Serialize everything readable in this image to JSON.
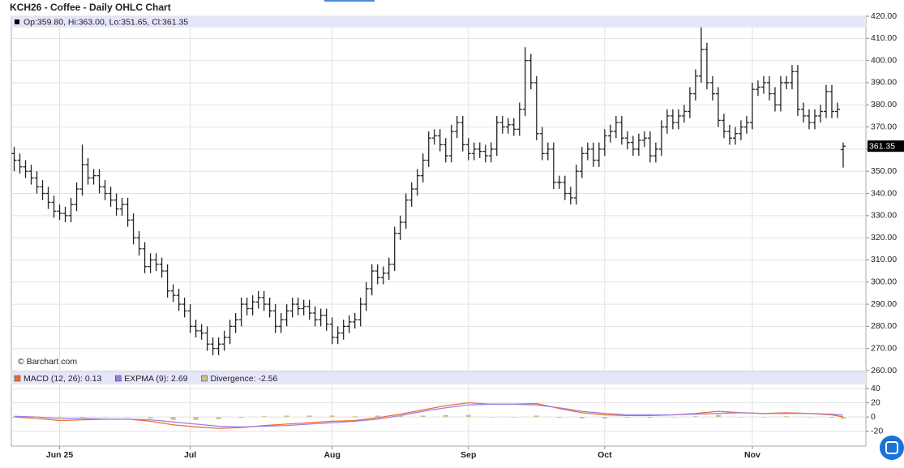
{
  "chart_data": [
    {
      "type": "ohlc",
      "title": "KCH26 - Coffee - Daily OHLC Chart",
      "legend_text": "Op:359.80, Hi:363.00, Lo:351.65, Cl:361.35",
      "last_label": "361.35",
      "credit": "© Barchart.com",
      "color": "#222222",
      "grid": true,
      "xlim": [
        -0.5,
        150
      ],
      "ylim": [
        260,
        420
      ],
      "yticks": [
        {
          "value": 260,
          "label": "260.00"
        },
        {
          "value": 270,
          "label": "270.00"
        },
        {
          "value": 280,
          "label": "280.00"
        },
        {
          "value": 290,
          "label": "290.00"
        },
        {
          "value": 300,
          "label": "300.00"
        },
        {
          "value": 310,
          "label": "310.00"
        },
        {
          "value": 320,
          "label": "320.00"
        },
        {
          "value": 330,
          "label": "330.00"
        },
        {
          "value": 340,
          "label": "340.00"
        },
        {
          "value": 350,
          "label": "350.00"
        },
        {
          "value": 360,
          "label": "360.00"
        },
        {
          "value": 370,
          "label": "370.00"
        },
        {
          "value": 380,
          "label": "380.00"
        },
        {
          "value": 390,
          "label": "390.00"
        },
        {
          "value": 400,
          "label": "400.00"
        },
        {
          "value": 410,
          "label": "410.00"
        },
        {
          "value": 420,
          "label": "420.00"
        }
      ],
      "open": [
        358,
        355,
        352,
        350,
        347,
        343,
        340,
        336,
        332,
        331,
        330,
        335,
        342,
        353,
        347,
        348,
        343,
        340,
        337,
        333,
        335,
        328,
        320,
        315,
        307,
        310,
        308,
        305,
        296,
        294,
        290,
        287,
        280,
        278,
        277,
        272,
        270,
        272,
        275,
        280,
        283,
        290,
        288,
        291,
        293,
        290,
        287,
        280,
        283,
        287,
        290,
        288,
        289,
        286,
        283,
        285,
        281,
        275,
        277,
        280,
        282,
        283,
        290,
        297,
        305,
        302,
        304,
        308,
        322,
        327,
        337,
        342,
        348,
        355,
        365,
        366,
        362,
        357,
        368,
        372,
        362,
        358,
        360,
        359,
        357,
        360,
        372,
        370,
        371,
        369,
        378,
        400,
        390,
        367,
        358,
        360,
        345,
        345,
        340,
        338,
        350,
        358,
        360,
        355,
        360,
        366,
        368,
        372,
        365,
        363,
        360,
        364,
        365,
        357,
        360,
        370,
        375,
        372,
        375,
        377,
        385,
        393,
        405,
        390,
        385,
        373,
        368,
        365,
        367,
        370,
        372,
        387,
        388,
        390,
        385,
        380,
        390,
        390,
        395,
        378,
        375,
        372,
        375,
        377,
        386,
        377,
        359.8
      ],
      "high": [
        361,
        358,
        355,
        353,
        350,
        346,
        343,
        339,
        335,
        334,
        338,
        345,
        362,
        356,
        351,
        351,
        346,
        343,
        340,
        338,
        338,
        331,
        323,
        318,
        313,
        313,
        311,
        308,
        299,
        297,
        293,
        290,
        283,
        281,
        280,
        275,
        275,
        278,
        283,
        286,
        293,
        293,
        294,
        296,
        296,
        293,
        290,
        286,
        290,
        293,
        293,
        292,
        292,
        289,
        288,
        288,
        284,
        280,
        283,
        285,
        286,
        293,
        300,
        308,
        308,
        307,
        311,
        325,
        330,
        340,
        345,
        351,
        358,
        368,
        369,
        369,
        365,
        371,
        375,
        375,
        365,
        363,
        363,
        362,
        363,
        375,
        375,
        374,
        374,
        381,
        406,
        403,
        393,
        370,
        363,
        363,
        348,
        348,
        343,
        353,
        361,
        363,
        363,
        363,
        369,
        371,
        375,
        375,
        368,
        366,
        367,
        368,
        368,
        363,
        373,
        378,
        378,
        378,
        380,
        388,
        396,
        415,
        408,
        393,
        388,
        376,
        371,
        370,
        373,
        375,
        390,
        391,
        393,
        393,
        388,
        393,
        393,
        398,
        398,
        381,
        378,
        378,
        380,
        389,
        389,
        381,
        363.0
      ],
      "low": [
        350,
        349,
        347,
        344,
        340,
        337,
        333,
        329,
        328,
        327,
        327,
        332,
        339,
        344,
        344,
        340,
        337,
        334,
        330,
        330,
        325,
        317,
        312,
        304,
        304,
        305,
        302,
        293,
        291,
        287,
        284,
        277,
        275,
        274,
        269,
        267,
        267,
        269,
        272,
        277,
        280,
        285,
        285,
        288,
        287,
        284,
        277,
        277,
        280,
        284,
        285,
        285,
        283,
        280,
        280,
        278,
        272,
        272,
        274,
        277,
        279,
        280,
        287,
        294,
        299,
        299,
        301,
        305,
        319,
        324,
        334,
        339,
        345,
        352,
        362,
        359,
        354,
        354,
        365,
        359,
        355,
        355,
        356,
        354,
        354,
        357,
        367,
        367,
        366,
        366,
        375,
        387,
        364,
        355,
        355,
        342,
        342,
        337,
        335,
        335,
        347,
        355,
        352,
        352,
        357,
        363,
        365,
        362,
        360,
        357,
        357,
        361,
        354,
        354,
        357,
        367,
        369,
        369,
        372,
        374,
        382,
        390,
        387,
        382,
        370,
        365,
        362,
        362,
        364,
        367,
        369,
        384,
        385,
        382,
        377,
        377,
        387,
        387,
        375,
        372,
        369,
        369,
        372,
        374,
        374,
        374,
        351.65
      ],
      "close": [
        355,
        352,
        350,
        347,
        343,
        340,
        336,
        332,
        331,
        330,
        335,
        342,
        353,
        347,
        348,
        343,
        340,
        337,
        333,
        335,
        328,
        320,
        315,
        307,
        310,
        308,
        305,
        296,
        294,
        290,
        287,
        280,
        278,
        277,
        272,
        270,
        272,
        275,
        280,
        283,
        290,
        288,
        291,
        293,
        290,
        287,
        280,
        283,
        287,
        290,
        288,
        289,
        286,
        283,
        285,
        281,
        275,
        277,
        280,
        282,
        283,
        290,
        297,
        305,
        302,
        304,
        308,
        322,
        327,
        337,
        342,
        348,
        355,
        365,
        366,
        362,
        357,
        368,
        372,
        362,
        358,
        360,
        359,
        357,
        360,
        372,
        370,
        371,
        369,
        378,
        400,
        390,
        367,
        358,
        360,
        345,
        345,
        340,
        338,
        350,
        358,
        360,
        355,
        360,
        366,
        368,
        372,
        365,
        363,
        360,
        364,
        365,
        357,
        360,
        370,
        375,
        372,
        375,
        377,
        385,
        393,
        405,
        390,
        385,
        373,
        368,
        365,
        367,
        370,
        372,
        387,
        388,
        390,
        385,
        380,
        390,
        390,
        395,
        378,
        375,
        372,
        375,
        377,
        386,
        377,
        378,
        361.35
      ]
    },
    {
      "type": "line",
      "grid": true,
      "xlim": [
        -0.5,
        150
      ],
      "ylim": [
        -41,
        63
      ],
      "yticks": [
        -20,
        0,
        20,
        40
      ],
      "xticks": [
        {
          "value": 8,
          "label": "Jun 25"
        },
        {
          "value": 31,
          "label": "Jul"
        },
        {
          "value": 56,
          "label": "Aug"
        },
        {
          "value": 80,
          "label": "Sep"
        },
        {
          "value": 104,
          "label": "Oct"
        },
        {
          "value": 130,
          "label": "Nov"
        }
      ],
      "x": [
        0,
        4,
        8,
        12,
        16,
        20,
        24,
        28,
        32,
        36,
        40,
        44,
        48,
        52,
        56,
        60,
        64,
        68,
        72,
        76,
        80,
        84,
        88,
        92,
        96,
        100,
        104,
        108,
        112,
        116,
        120,
        124,
        128,
        132,
        136,
        140,
        144,
        146
      ],
      "series": [
        {
          "name": "MACD (12, 26): 0.13",
          "color": "#f26a2e",
          "type": "line",
          "values": [
            0,
            -2,
            -5,
            -4,
            -3,
            -3,
            -6,
            -11,
            -14,
            -16,
            -15,
            -12,
            -10,
            -8,
            -6,
            -5,
            -1,
            4,
            10,
            16,
            20,
            18,
            18,
            19,
            12,
            6,
            3,
            2,
            2,
            3,
            5,
            8,
            6,
            5,
            6,
            5,
            3,
            0.13
          ]
        },
        {
          "name": "EXPMA (9): 2.69",
          "color": "#9b7fe0",
          "type": "line",
          "values": [
            1,
            0,
            -2,
            -2,
            -3,
            -3,
            -4,
            -7,
            -10,
            -13,
            -14,
            -13,
            -12,
            -10,
            -8,
            -6,
            -3,
            2,
            8,
            13,
            17,
            18,
            18,
            17,
            13,
            8,
            5,
            3,
            3,
            3,
            4,
            5,
            6,
            5,
            5,
            5,
            4,
            2.69
          ]
        },
        {
          "name": "Divergence: -2.56",
          "color": "#c9c08e",
          "type": "bar",
          "values": [
            -1,
            -2,
            -3,
            -2,
            0,
            0,
            -2,
            -4,
            -4,
            -3,
            -1,
            1,
            2,
            2,
            2,
            1,
            2,
            2,
            2,
            3,
            3,
            0,
            0,
            2,
            -1,
            -2,
            -2,
            -1,
            -1,
            0,
            1,
            3,
            0,
            0,
            1,
            0,
            -1,
            -2.56
          ]
        }
      ]
    }
  ]
}
